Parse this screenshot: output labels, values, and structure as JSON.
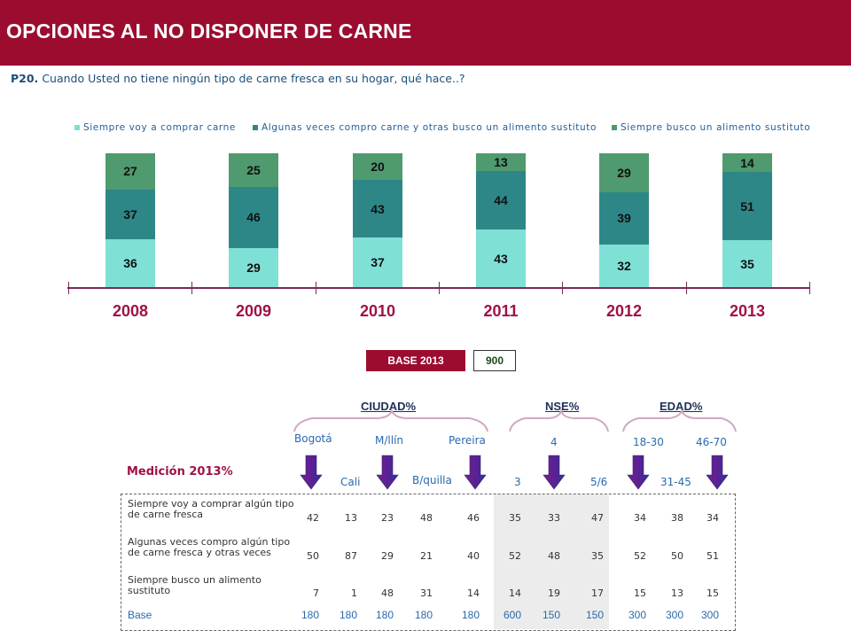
{
  "header": {
    "title": "OPCIONES AL NO DISPONER DE CARNE"
  },
  "question": {
    "number": "P20.",
    "text": "Cuando Usted no tiene ningún tipo de carne fresca en su hogar, qué hace..?"
  },
  "colors": {
    "brand": "#9b0c2f",
    "series1": "#7fe0d6",
    "series2": "#2e8787",
    "series3": "#4f9a6e"
  },
  "chart_data": {
    "type": "bar",
    "stacked": true,
    "categories": [
      "2008",
      "2009",
      "2010",
      "2011",
      "2012",
      "2013"
    ],
    "series": [
      {
        "name": "Siempre voy a comprar carne",
        "values": [
          36,
          29,
          37,
          43,
          32,
          35
        ]
      },
      {
        "name": "Algunas veces compro carne y otras busco un alimento sustituto",
        "values": [
          37,
          46,
          43,
          44,
          39,
          51
        ]
      },
      {
        "name": "Siempre busco un alimento sustituto",
        "values": [
          27,
          25,
          20,
          13,
          29,
          14
        ]
      }
    ],
    "legend_position": "top",
    "grid": false
  },
  "base": {
    "label": "BASE 2013",
    "value": "900"
  },
  "table": {
    "title": "Medición 2013%",
    "groups": [
      {
        "name": "CIUDAD%",
        "subs": [
          {
            "label": "Bogotá"
          },
          {
            "label": "Cali"
          },
          {
            "label": "M/llín"
          },
          {
            "label": "B/quilla"
          },
          {
            "label": "Pereira"
          }
        ]
      },
      {
        "name": "NSE%",
        "subs": [
          {
            "label": "3"
          },
          {
            "label": "4"
          },
          {
            "label": "5/6"
          }
        ]
      },
      {
        "name": "EDAD%",
        "subs": [
          {
            "label": "18-30"
          },
          {
            "label": "31-45"
          },
          {
            "label": "46-70"
          }
        ]
      }
    ],
    "rows": [
      {
        "label_line1": "Siempre voy a comprar algún tipo",
        "label_line2": "de carne fresca",
        "values": [
          "42",
          "13",
          "23",
          "48",
          "46",
          "35",
          "33",
          "47",
          "34",
          "38",
          "34"
        ]
      },
      {
        "label_line1": "Algunas veces compro algún tipo",
        "label_line2": "de carne fresca y otras veces",
        "values": [
          "50",
          "87",
          "29",
          "21",
          "40",
          "52",
          "48",
          "35",
          "52",
          "50",
          "51"
        ]
      },
      {
        "label_line1": "Siempre busco un alimento",
        "label_line2": "sustituto",
        "values": [
          "7",
          "1",
          "48",
          "31",
          "14",
          "14",
          "19",
          "17",
          "15",
          "13",
          "15"
        ]
      }
    ],
    "base_row": {
      "label": "Base",
      "values": [
        "180",
        "180",
        "180",
        "180",
        "180",
        "600",
        "150",
        "150",
        "300",
        "300",
        "300"
      ]
    }
  }
}
